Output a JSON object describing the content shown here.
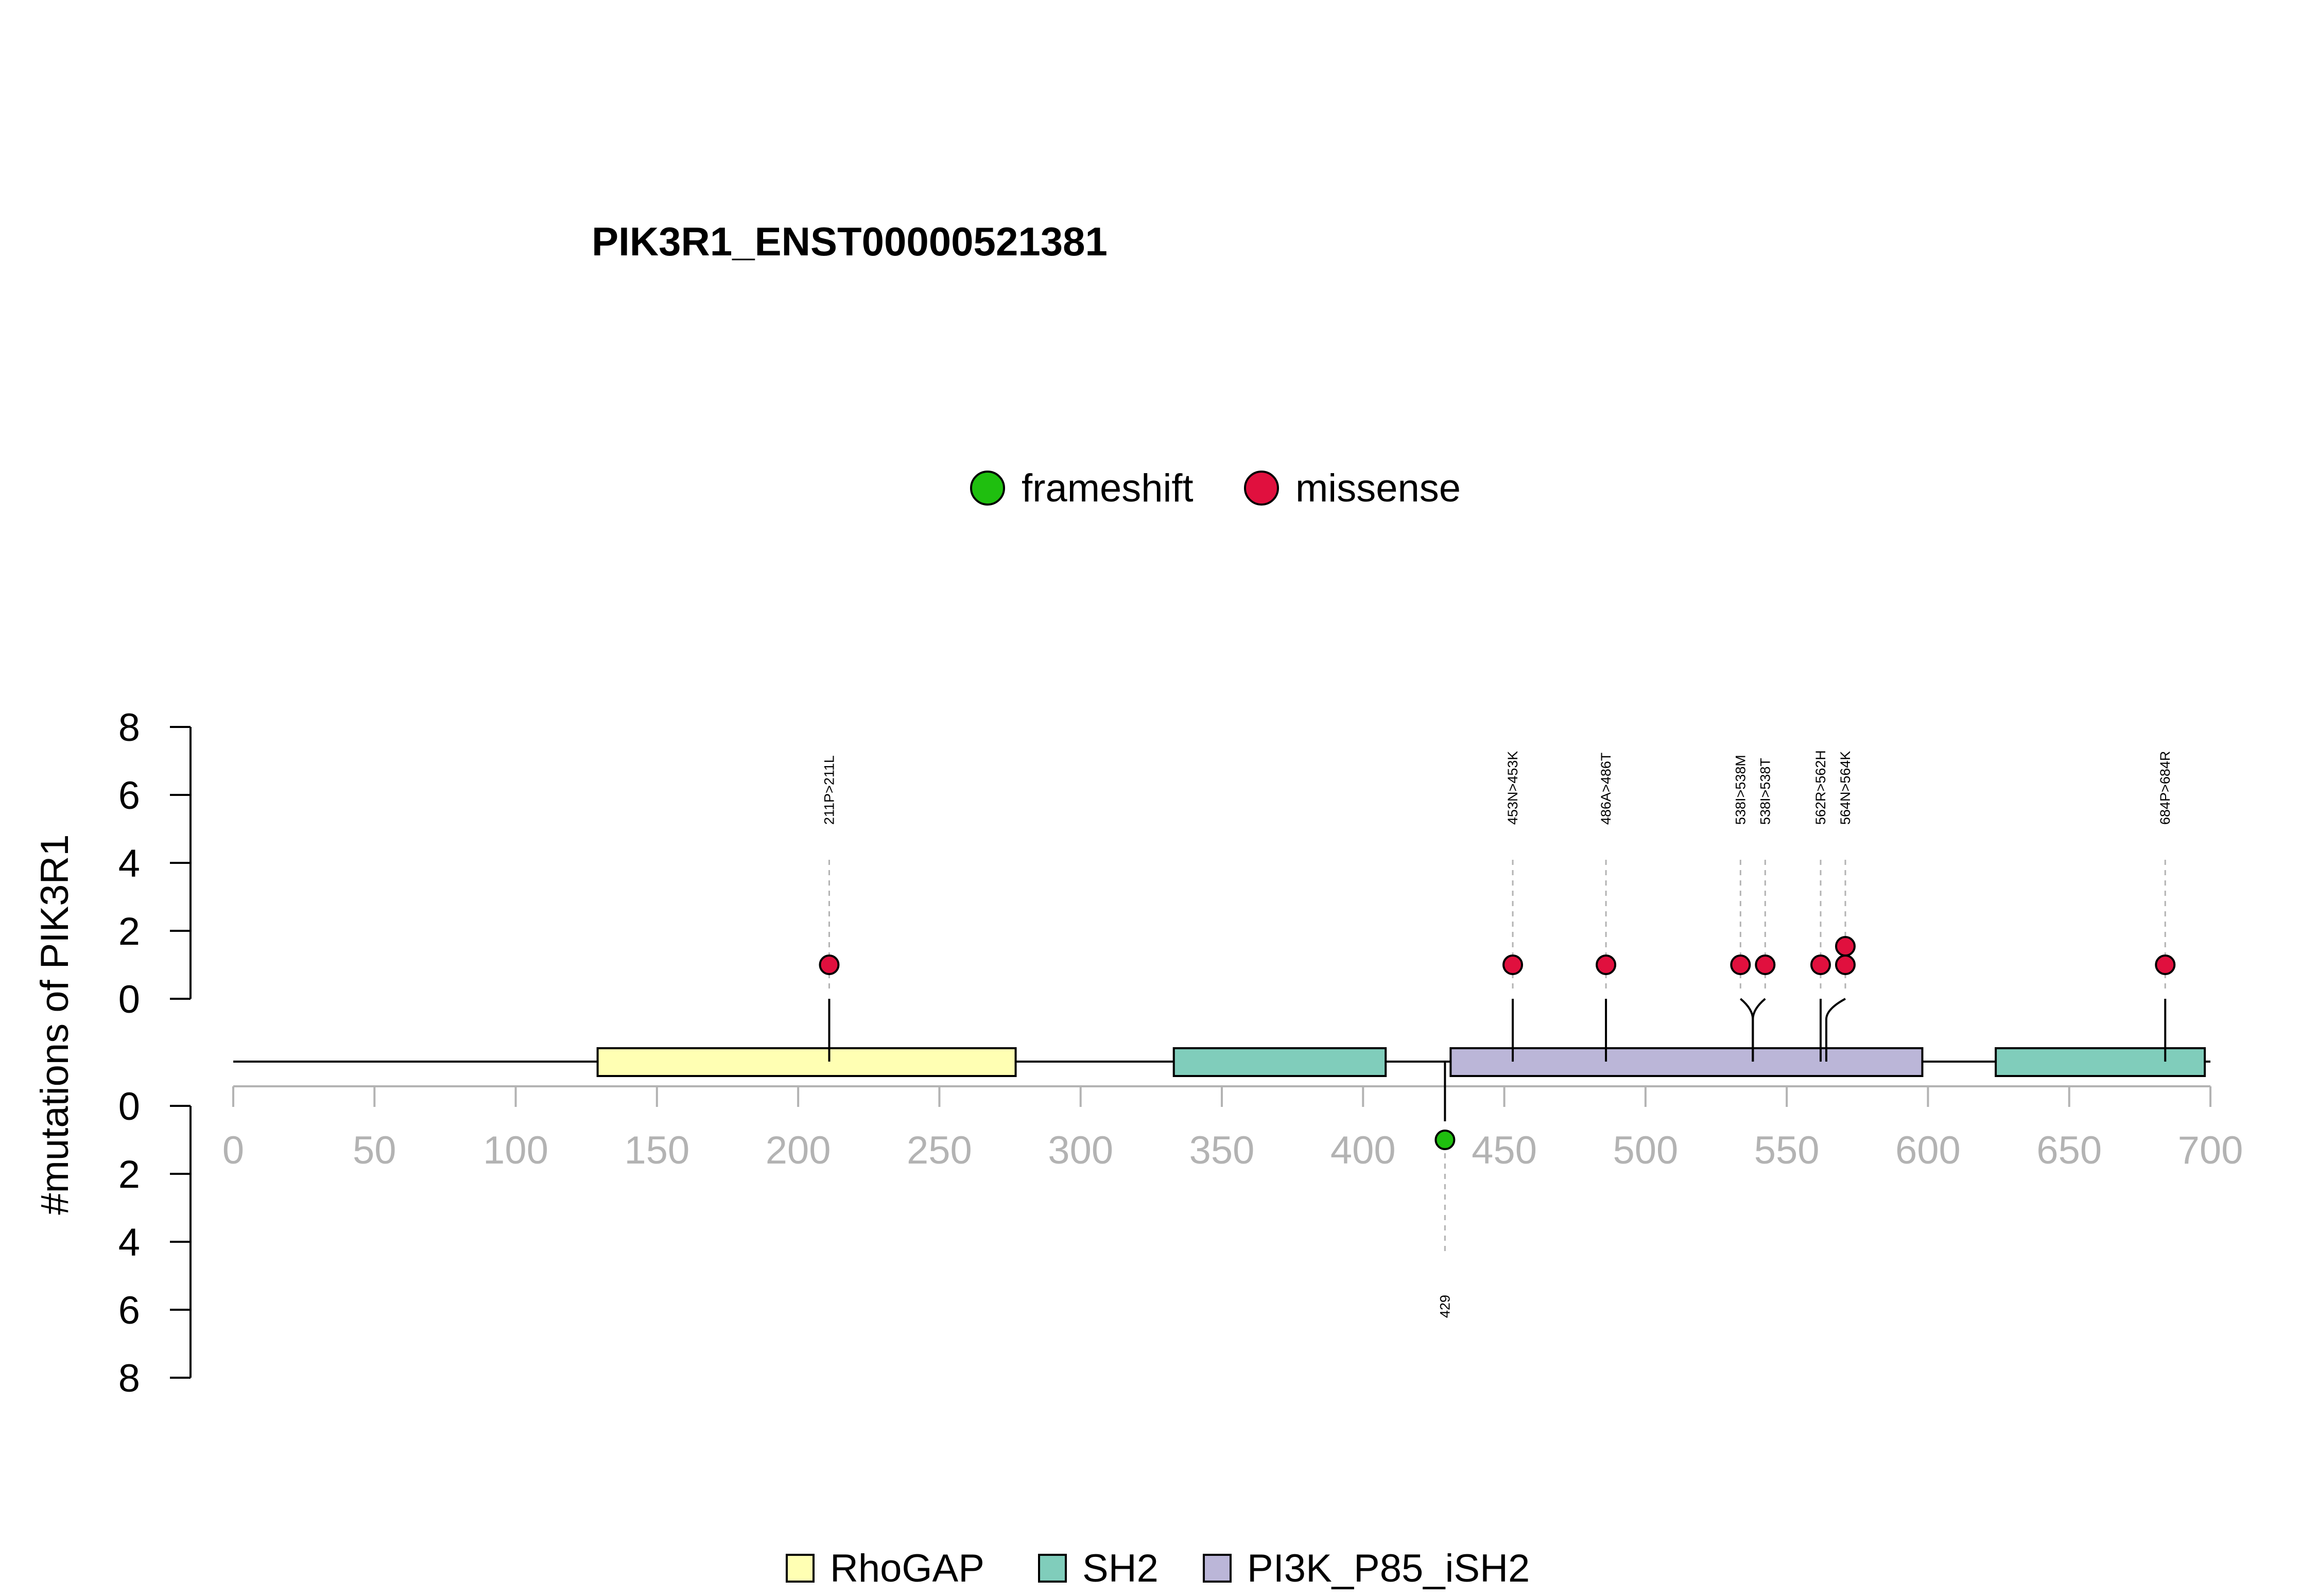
{
  "chart_data": {
    "type": "lollipop",
    "title": "PIK3R1_ENST00000521381",
    "ylabel": "#mutations of PIK3R1",
    "xlim": [
      0,
      700
    ],
    "x_ticks": [
      0,
      50,
      100,
      150,
      200,
      250,
      300,
      350,
      400,
      450,
      500,
      550,
      600,
      650,
      700
    ],
    "y_ticks": [
      0,
      2,
      4,
      6,
      8
    ],
    "y_ticks_label": [
      "0",
      "2",
      "4",
      "6",
      "8"
    ],
    "ylim": [
      0,
      8
    ],
    "protein_length": 700,
    "mutation_legend": [
      {
        "name": "frameshift",
        "color": "#1fbf0f"
      },
      {
        "name": "missense",
        "color": "#e0103e"
      }
    ],
    "domain_legend": [
      {
        "name": "RhoGAP",
        "color": "#ffffb3"
      },
      {
        "name": "SH2",
        "color": "#80cdbb"
      },
      {
        "name": "PI3K_P85_iSH2",
        "color": "#bbb6d8"
      }
    ],
    "domains": [
      {
        "name": "RhoGAP",
        "start": 129,
        "end": 277
      },
      {
        "name": "SH2",
        "start": 333,
        "end": 408
      },
      {
        "name": "PI3K_P85_iSH2",
        "start": 431,
        "end": 598
      },
      {
        "name": "SH2",
        "start": 624,
        "end": 698
      }
    ],
    "mutations_top": [
      {
        "label": "211P>211L",
        "pos": 211,
        "count": 1,
        "type": "missense"
      },
      {
        "label": "453N>453K",
        "pos": 453,
        "count": 1,
        "type": "missense"
      },
      {
        "label": "486A>486T",
        "pos": 486,
        "count": 1,
        "type": "missense"
      },
      {
        "label": "538I>538M",
        "pos": 538,
        "count": 1,
        "type": "missense"
      },
      {
        "label": "538I>538T",
        "pos": 538,
        "count": 1,
        "type": "missense"
      },
      {
        "label": "562R>562H",
        "pos": 562,
        "count": 1,
        "type": "missense"
      },
      {
        "label": "564N>564K",
        "pos": 564,
        "count": 2,
        "type": "missense"
      },
      {
        "label": "684P>684R",
        "pos": 684,
        "count": 1,
        "type": "missense"
      }
    ],
    "mutations_bottom": [
      {
        "label": "429",
        "pos": 429,
        "count": 1,
        "type": "frameshift"
      }
    ]
  }
}
